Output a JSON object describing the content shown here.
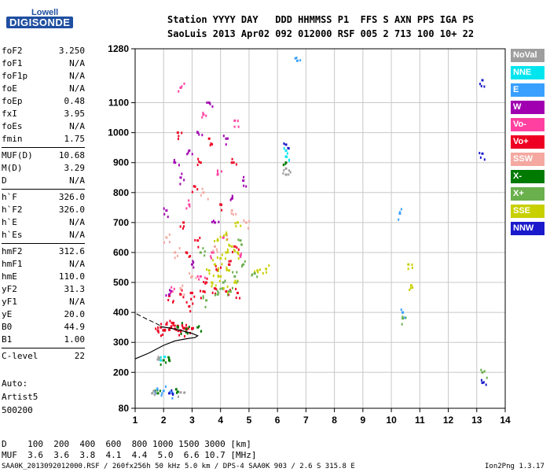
{
  "logo": {
    "line1": "Lowell",
    "line2": "DIGISONDE"
  },
  "header": {
    "line1": "Station YYYY DAY   DDD HHMMSS P1  FFS S AXN PPS IGA PS",
    "line2": "SaoLuis 2013 Apr02 092 012000 RSF 005 2 713 100 10+ 22"
  },
  "params": [
    {
      "k": "foF2",
      "v": "3.250"
    },
    {
      "k": "foF1",
      "v": "N/A"
    },
    {
      "k": "foF1p",
      "v": "N/A"
    },
    {
      "k": "foE",
      "v": "N/A"
    },
    {
      "k": "foEp",
      "v": "0.48"
    },
    {
      "k": "fxI",
      "v": "3.95"
    },
    {
      "k": "foEs",
      "v": "N/A"
    },
    {
      "k": "fmin",
      "v": "1.75"
    },
    {
      "k": "MUF(D)",
      "v": "10.68"
    },
    {
      "k": "M(D)",
      "v": "3.29"
    },
    {
      "k": "D",
      "v": "N/A"
    },
    {
      "k": "h`F",
      "v": "326.0"
    },
    {
      "k": "h`F2",
      "v": "326.0"
    },
    {
      "k": "h`E",
      "v": "N/A"
    },
    {
      "k": "h`Es",
      "v": "N/A"
    },
    {
      "k": "hmF2",
      "v": "312.6"
    },
    {
      "k": "hmF1",
      "v": "N/A"
    },
    {
      "k": "hmE",
      "v": "110.0"
    },
    {
      "k": "yF2",
      "v": "31.3"
    },
    {
      "k": "yF1",
      "v": "N/A"
    },
    {
      "k": "yE",
      "v": "20.0"
    },
    {
      "k": "B0",
      "v": "44.9"
    },
    {
      "k": "B1",
      "v": "1.00"
    },
    {
      "k": "C-level",
      "v": "22"
    }
  ],
  "autoscale": {
    "line1": "Auto:",
    "line2": "Artist5",
    "line3": "500200"
  },
  "legend": [
    {
      "label": "NoVal",
      "color": "#9e9e9e"
    },
    {
      "label": "NNE",
      "color": "#00e5ee"
    },
    {
      "label": "E",
      "color": "#3aa0ff"
    },
    {
      "label": "W",
      "color": "#a000b0"
    },
    {
      "label": "Vo-",
      "color": "#ff40a0"
    },
    {
      "label": "Vo+",
      "color": "#ee0022"
    },
    {
      "label": "SSW",
      "color": "#f4a8a0"
    },
    {
      "label": "X-",
      "color": "#007a00"
    },
    {
      "label": "X+",
      "color": "#6ab04c"
    },
    {
      "label": "SSE",
      "color": "#c8d000"
    },
    {
      "label": "NNW",
      "color": "#1a1acc"
    }
  ],
  "bottom": {
    "d_line": "D    100  200  400  600  800 1000 1500 3000 [km]",
    "muf_line": "MUF  3.6  3.6  3.8  4.1  4.4  5.0  6.6 10.7 [MHz]"
  },
  "footer": {
    "left": "SAA0K_2013092012000.RSF / 260fx256h 50 kHz 5.0 km / DPS-4 SAA0K 903 / 2.6 S 315.8 E",
    "right": "Ion2Png 1.3.17"
  },
  "chart_data": {
    "type": "scatter",
    "xlim": [
      1,
      14
    ],
    "ylim": [
      80,
      1280
    ],
    "x_ticks": [
      1,
      2,
      3,
      4,
      5,
      6,
      7,
      8,
      9,
      10,
      11,
      12,
      13,
      14
    ],
    "y_ticks": [
      80,
      200,
      300,
      400,
      500,
      600,
      700,
      800,
      900,
      1000,
      1100,
      1280
    ],
    "grid": true,
    "profile_curve": [
      [
        1.0,
        245
      ],
      [
        1.5,
        265
      ],
      [
        2.0,
        290
      ],
      [
        2.4,
        305
      ],
      [
        2.8,
        312
      ],
      [
        3.1,
        316
      ],
      [
        3.2,
        322
      ],
      [
        3.0,
        330
      ],
      [
        2.6,
        340
      ],
      [
        2.2,
        348
      ],
      [
        1.9,
        352
      ]
    ],
    "profile_dashed": [
      [
        1.05,
        395
      ],
      [
        1.4,
        378
      ],
      [
        1.7,
        365
      ],
      [
        1.9,
        355
      ]
    ],
    "series": [
      {
        "color_key": "Vo+",
        "points": [
          [
            1.8,
            340
          ],
          [
            2.0,
            340
          ],
          [
            2.2,
            342
          ],
          [
            2.4,
            345
          ],
          [
            2.6,
            340
          ],
          [
            2.8,
            342
          ],
          [
            3.0,
            345
          ],
          [
            2.1,
            360
          ],
          [
            2.3,
            365
          ],
          [
            1.9,
            350
          ],
          [
            2.5,
            355
          ],
          [
            2.7,
            348
          ],
          [
            2.2,
            455
          ],
          [
            2.6,
            460
          ],
          [
            3.0,
            465
          ],
          [
            3.4,
            470
          ],
          [
            3.8,
            480
          ],
          [
            4.2,
            470
          ],
          [
            4.6,
            465
          ],
          [
            2.9,
            420
          ],
          [
            3.5,
            500
          ],
          [
            3.9,
            540
          ],
          [
            4.3,
            560
          ],
          [
            2.7,
            700
          ],
          [
            3.1,
            820
          ],
          [
            3.3,
            900
          ],
          [
            4.0,
            760
          ],
          [
            4.5,
            620
          ],
          [
            2.5,
            1000
          ],
          [
            3.6,
            980
          ],
          [
            4.4,
            900
          ],
          [
            2.8,
            600
          ],
          [
            3.2,
            640
          ]
        ]
      },
      {
        "color_key": "Vo-",
        "points": [
          [
            2.3,
            470
          ],
          [
            3.3,
            520
          ],
          [
            3.7,
            600
          ],
          [
            4.1,
            650
          ],
          [
            4.7,
            590
          ],
          [
            2.9,
            760
          ],
          [
            3.9,
            860
          ],
          [
            2.6,
            1150
          ],
          [
            3.4,
            1060
          ],
          [
            4.5,
            1040
          ]
        ]
      },
      {
        "color_key": "W",
        "points": [
          [
            2.1,
            740
          ],
          [
            2.4,
            900
          ],
          [
            2.9,
            940
          ],
          [
            3.2,
            1000
          ],
          [
            3.6,
            1100
          ],
          [
            4.2,
            980
          ],
          [
            4.8,
            840
          ],
          [
            3.8,
            700
          ],
          [
            2.6,
            850
          ],
          [
            4.4,
            780
          ],
          [
            3.0,
            560
          ],
          [
            2.2,
            460
          ]
        ]
      },
      {
        "color_key": "SSE",
        "points": [
          [
            3.6,
            540
          ],
          [
            3.8,
            560
          ],
          [
            4.0,
            580
          ],
          [
            4.2,
            600
          ],
          [
            4.4,
            620
          ],
          [
            4.6,
            600
          ],
          [
            4.3,
            540
          ],
          [
            4.0,
            520
          ],
          [
            3.7,
            500
          ],
          [
            4.5,
            500
          ],
          [
            4.2,
            660
          ],
          [
            4.6,
            700
          ],
          [
            3.9,
            640
          ],
          [
            5.3,
            540
          ],
          [
            5.6,
            545
          ],
          [
            4.1,
            480
          ],
          [
            10.6,
            560
          ],
          [
            10.7,
            490
          ]
        ]
      },
      {
        "color_key": "X+",
        "points": [
          [
            3.9,
            460
          ],
          [
            4.1,
            500
          ],
          [
            4.3,
            470
          ],
          [
            4.5,
            520
          ],
          [
            3.5,
            440
          ],
          [
            4.8,
            560
          ],
          [
            5.2,
            530
          ],
          [
            3.3,
            600
          ],
          [
            4.7,
            640
          ],
          [
            13.2,
            200
          ],
          [
            10.4,
            380
          ]
        ]
      },
      {
        "color_key": "X-",
        "points": [
          [
            2.5,
            350
          ],
          [
            2.8,
            345
          ],
          [
            3.2,
            350
          ],
          [
            2.0,
            240
          ],
          [
            2.2,
            240
          ],
          [
            2.5,
            135
          ],
          [
            1.8,
            130
          ],
          [
            6.3,
            900
          ]
        ]
      },
      {
        "color_key": "SSW",
        "points": [
          [
            2.6,
            480
          ],
          [
            3.0,
            520
          ],
          [
            3.8,
            620
          ],
          [
            4.4,
            740
          ],
          [
            2.4,
            600
          ],
          [
            3.4,
            800
          ],
          [
            4.9,
            700
          ],
          [
            2.1,
            650
          ]
        ]
      },
      {
        "color_key": "E",
        "points": [
          [
            1.7,
            135
          ],
          [
            2.0,
            138
          ],
          [
            2.3,
            132
          ],
          [
            6.7,
            1240
          ],
          [
            10.3,
            730
          ],
          [
            10.4,
            400
          ]
        ]
      },
      {
        "color_key": "NNE",
        "points": [
          [
            1.9,
            240
          ],
          [
            6.3,
            940
          ],
          [
            6.3,
            920
          ]
        ]
      },
      {
        "color_key": "NNW",
        "points": [
          [
            13.2,
            1175
          ],
          [
            13.2,
            930
          ],
          [
            13.2,
            165
          ],
          [
            6.3,
            960
          ],
          [
            2.2,
            130
          ]
        ]
      },
      {
        "color_key": "NoVal",
        "points": [
          [
            1.6,
            130
          ],
          [
            2.6,
            133
          ],
          [
            1.8,
            243
          ],
          [
            6.3,
            880
          ],
          [
            6.3,
            860
          ]
        ]
      }
    ]
  }
}
